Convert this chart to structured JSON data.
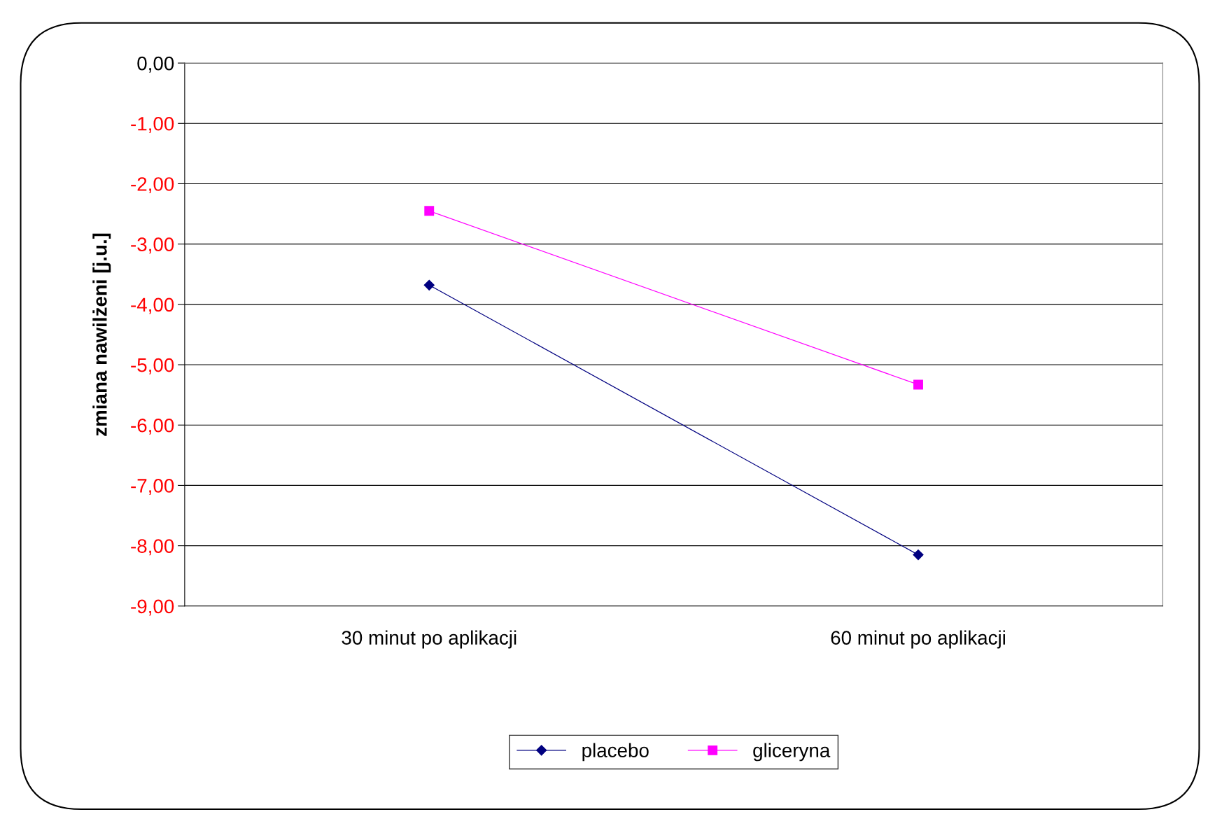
{
  "chart_data": {
    "type": "line",
    "ylabel": "zmiana nawilżeni [j.u.]",
    "categories": [
      "30 minut po aplikacji",
      "60 minut po aplikacji"
    ],
    "series": [
      {
        "name": "placebo",
        "color": "#000080",
        "marker": "diamond",
        "values": [
          -3.68,
          -8.15
        ]
      },
      {
        "name": "gliceryna",
        "color": "#ff00ff",
        "marker": "square",
        "values": [
          -2.45,
          -5.33
        ]
      }
    ],
    "ylim": [
      -9,
      0
    ],
    "yticks": [
      {
        "value": 0,
        "label": "0,00"
      },
      {
        "value": -1,
        "label": "-1,00"
      },
      {
        "value": -2,
        "label": "-2,00"
      },
      {
        "value": -3,
        "label": "-3,00"
      },
      {
        "value": -4,
        "label": "-4,00"
      },
      {
        "value": -5,
        "label": "-5,00"
      },
      {
        "value": -6,
        "label": "-6,00"
      },
      {
        "value": -7,
        "label": "-7,00"
      },
      {
        "value": -8,
        "label": "-8,00"
      },
      {
        "value": -9,
        "label": "-9,00"
      }
    ],
    "grid": "y",
    "legend": "bottom",
    "line_style": "solid"
  }
}
